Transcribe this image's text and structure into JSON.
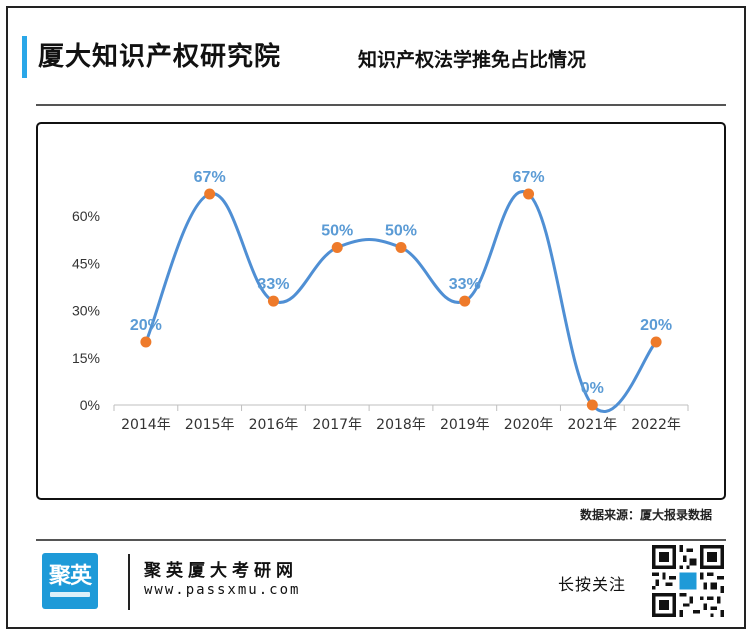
{
  "header": {
    "title": "厦大知识产权研究院",
    "subtitle": "知识产权法学推免占比情况"
  },
  "source_note": "数据来源：厦大报录数据",
  "footer": {
    "logo_text": "聚英",
    "brand_name": "聚英厦大考研网",
    "url": "www.passxmu.com",
    "cta": "长按关注",
    "qr_icon": "qr-code-icon"
  },
  "colors": {
    "accent": "#2aa7e8",
    "line": "#4f8fd4",
    "marker": "#ee7a2a",
    "label": "#5b9bd5",
    "logo_bg": "#1e9ad8"
  },
  "chart_data": {
    "type": "line",
    "categories": [
      "2014年",
      "2015年",
      "2016年",
      "2017年",
      "2018年",
      "2019年",
      "2020年",
      "2021年",
      "2022年"
    ],
    "values": [
      20,
      67,
      33,
      50,
      50,
      33,
      67,
      0,
      20
    ],
    "data_labels": [
      "20%",
      "67%",
      "33%",
      "50%",
      "50%",
      "33%",
      "67%",
      "0%",
      "20%"
    ],
    "yticks": [
      "0%",
      "15%",
      "30%",
      "45%",
      "60%"
    ],
    "ytick_values": [
      0,
      15,
      30,
      45,
      60
    ],
    "ylim": [
      0,
      67
    ],
    "smooth": true,
    "grid": false,
    "legend": "none",
    "title": "",
    "xlabel": "",
    "ylabel": ""
  }
}
